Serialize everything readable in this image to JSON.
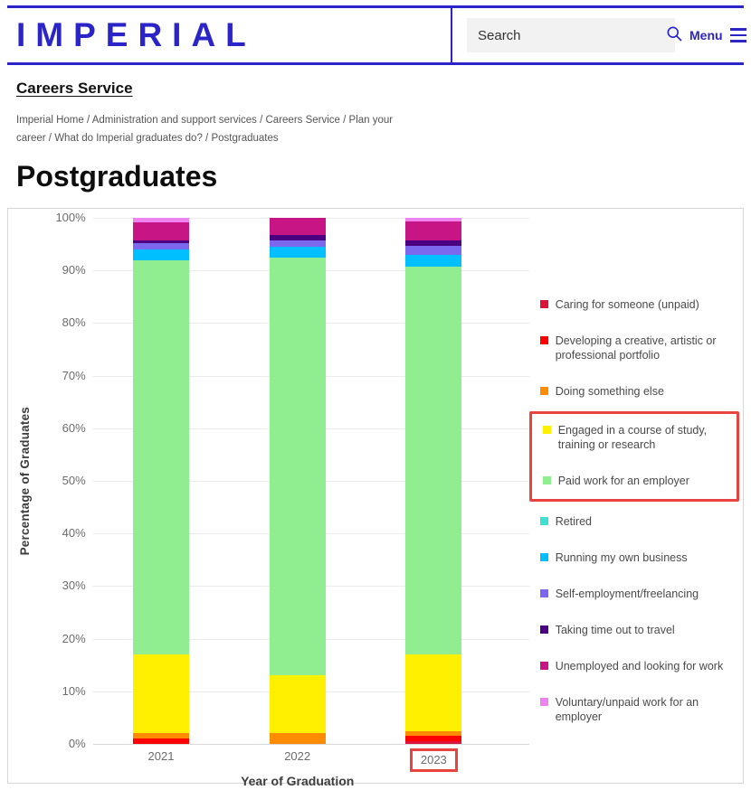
{
  "header": {
    "logo": "IMPERIAL",
    "search_placeholder": "Search",
    "menu_label": "Menu"
  },
  "nav": {
    "site_title": "Careers Service",
    "breadcrumb": [
      "Imperial Home",
      "Administration and support services",
      "Careers Service",
      "Plan your career",
      "What do Imperial graduates do?",
      "Postgraduates"
    ]
  },
  "page_title": "Postgraduates",
  "colors": {
    "brand_blue": "#2b24c8",
    "annotation_red": "#e8433f"
  },
  "chart_data": {
    "type": "bar",
    "stacked": true,
    "xlabel": "Year of Graduation",
    "ylabel": "Percentage of Graduates",
    "ylim": [
      0,
      100
    ],
    "yticks": [
      0,
      10,
      20,
      30,
      40,
      50,
      60,
      70,
      80,
      90,
      100
    ],
    "ytick_suffix": "%",
    "grid": true,
    "legend_position": "right",
    "categories": [
      "2021",
      "2022",
      "2023"
    ],
    "series": [
      {
        "name": "Caring for someone (unpaid)",
        "color": "#DC143C",
        "values": [
          0,
          0,
          0.5
        ]
      },
      {
        "name": "Developing a creative, artistic or professional portfolio",
        "color": "#FF0000",
        "values": [
          1,
          0,
          1
        ]
      },
      {
        "name": "Doing something else",
        "color": "#FF8C00",
        "values": [
          1,
          2,
          1
        ]
      },
      {
        "name": "Engaged in a course of study, training or research",
        "color": "#FFF000",
        "values": [
          15,
          11,
          14.5
        ]
      },
      {
        "name": "Paid work for an employer",
        "color": "#90EE90",
        "values": [
          75,
          79.5,
          73.7
        ]
      },
      {
        "name": "Retired",
        "color": "#40E0D0",
        "values": [
          0,
          0,
          0
        ]
      },
      {
        "name": "Running my own business",
        "color": "#00BFFF",
        "values": [
          2,
          2.1,
          2.3
        ]
      },
      {
        "name": "Self-employment/freelancing",
        "color": "#7B68EE",
        "values": [
          1.2,
          1.1,
          1.7
        ]
      },
      {
        "name": "Taking time out to travel",
        "color": "#4B0082",
        "values": [
          0.5,
          1.1,
          1.1
        ]
      },
      {
        "name": "Unemployed and looking for work",
        "color": "#C71585",
        "values": [
          3.5,
          3.2,
          3.5
        ]
      },
      {
        "name": "Voluntary/unpaid work for an employer",
        "color": "#EE82EE",
        "values": [
          0.8,
          0,
          0.7
        ]
      }
    ],
    "annotations": {
      "legend_box_series": [
        3,
        4
      ],
      "xtick_box_category": "2023",
      "box_color": "#e8433f"
    }
  }
}
